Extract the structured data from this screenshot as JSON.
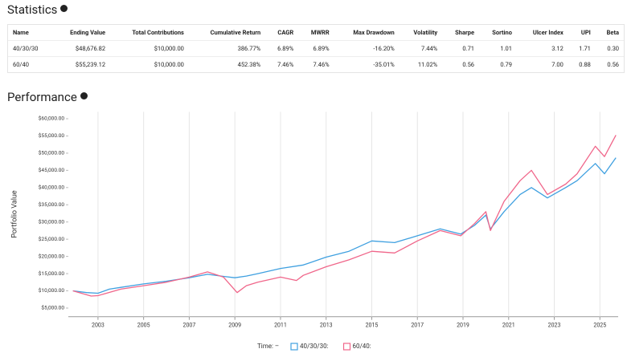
{
  "statistics": {
    "title": "Statistics",
    "columns": [
      "Name",
      "Ending Value",
      "Total Contributions",
      "Cumulative Return",
      "CAGR",
      "MWRR",
      "Max Drawdown",
      "Volatility",
      "Sharpe",
      "Sortino",
      "Ulcer Index",
      "UPI",
      "Beta"
    ],
    "rows": [
      [
        "40/30/30",
        "$48,676.82",
        "$10,000.00",
        "386.77%",
        "6.89%",
        "6.89%",
        "-16.20%",
        "7.44%",
        "0.71",
        "1.01",
        "3.12",
        "1.71",
        "0.30"
      ],
      [
        "60/40",
        "$55,239.12",
        "$10,000.00",
        "452.38%",
        "7.46%",
        "7.46%",
        "-35.01%",
        "11.02%",
        "0.56",
        "0.79",
        "7.00",
        "0.88",
        "0.56"
      ]
    ]
  },
  "chart_data": {
    "type": "line",
    "title": "Performance",
    "y_label": "Portfolio Value",
    "legend_title": "Time: –",
    "xlim": [
      2001.7,
      2025.8
    ],
    "xticks": [
      2003,
      2005,
      2007,
      2009,
      2011,
      2013,
      2015,
      2017,
      2019,
      2021,
      2023,
      2025
    ],
    "ylim": [
      2500,
      62000
    ],
    "yticks": [
      {
        "value": 5000,
        "label": "$5,000.00"
      },
      {
        "value": 10000,
        "label": "$10,000.00"
      },
      {
        "value": 15000,
        "label": "$15,000.00"
      },
      {
        "value": 20000,
        "label": "$20,000.00"
      },
      {
        "value": 25000,
        "label": "$25,000.00"
      },
      {
        "value": 30000,
        "label": "$30,000.00"
      },
      {
        "value": 35000,
        "label": "$35,000.00"
      },
      {
        "value": 40000,
        "label": "$40,000.00"
      },
      {
        "value": 45000,
        "label": "$45,000.00"
      },
      {
        "value": 50000,
        "label": "$50,000.00"
      },
      {
        "value": 55000,
        "label": "$55,000.00"
      },
      {
        "value": 60000,
        "label": "$60,000.00"
      }
    ],
    "grid": true,
    "series": [
      {
        "name": "40/30/30:",
        "color": "#3fa0e0",
        "x": [
          2001.9,
          2002.5,
          2003,
          2003.5,
          2004,
          2005,
          2006,
          2007,
          2007.8,
          2008.5,
          2009,
          2009.5,
          2010,
          2011,
          2012,
          2013,
          2014,
          2015,
          2016,
          2017,
          2018,
          2018.9,
          2019.5,
          2020,
          2020.2,
          2020.8,
          2021.5,
          2022,
          2022.7,
          2023.5,
          2024,
          2024.8,
          2025.2,
          2025.7
        ],
        "values": [
          10000,
          9500,
          9300,
          10500,
          11000,
          12000,
          12800,
          13800,
          14800,
          14200,
          13800,
          14300,
          15000,
          16500,
          17500,
          19800,
          21500,
          24500,
          24000,
          26000,
          28000,
          26500,
          29000,
          32000,
          28000,
          33000,
          38000,
          40000,
          37000,
          40000,
          42000,
          47000,
          44000,
          48676
        ]
      },
      {
        "name": "60/40:",
        "color": "#f0668a",
        "x": [
          2001.9,
          2002.7,
          2003,
          2004,
          2005,
          2006,
          2007,
          2007.8,
          2008.5,
          2009.1,
          2009.5,
          2010,
          2011,
          2011.7,
          2012,
          2013,
          2014,
          2015,
          2016,
          2017,
          2018,
          2018.9,
          2019.5,
          2020,
          2020.2,
          2020.8,
          2021.5,
          2022,
          2022.7,
          2023.5,
          2024,
          2024.8,
          2025.2,
          2025.7
        ],
        "values": [
          10000,
          8500,
          8600,
          10500,
          11500,
          12500,
          14000,
          15500,
          14000,
          9500,
          11500,
          12500,
          14000,
          13000,
          14500,
          17000,
          19000,
          21500,
          21000,
          24500,
          27500,
          26000,
          29500,
          33000,
          27500,
          36000,
          42000,
          45000,
          38000,
          41000,
          44000,
          52000,
          49000,
          55239
        ]
      }
    ]
  }
}
